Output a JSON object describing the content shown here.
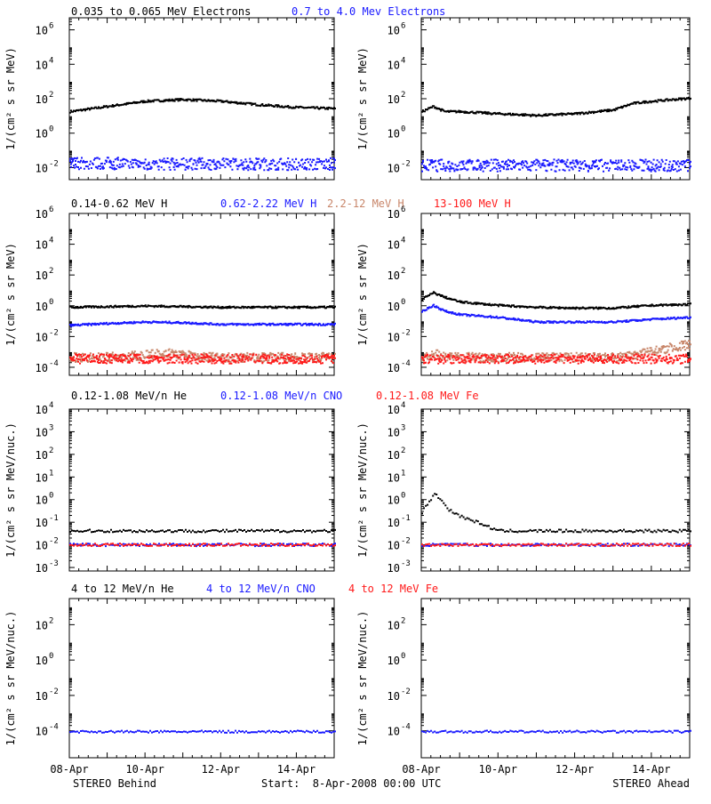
{
  "colors": {
    "black": "#000000",
    "blue": "#1a1aff",
    "tan": "#c8866a",
    "red": "#ff1a1a"
  },
  "chart_data": [
    {
      "type": "scatter",
      "row": 1,
      "log_y": true,
      "ylim": [
        0.002,
        5000000
      ],
      "xlim": [
        0,
        7
      ],
      "ylabel": "1/(cm² s sr MeV)",
      "yticks": [
        {
          "v": 0.01,
          "b": "10",
          "e": "-2"
        },
        {
          "v": 1,
          "b": "10",
          "e": "0"
        },
        {
          "v": 100,
          "b": "10",
          "e": "2"
        },
        {
          "v": 10000,
          "b": "10",
          "e": "4"
        },
        {
          "v": 1000000,
          "b": "10",
          "e": "6"
        }
      ],
      "legend": [
        {
          "name": "0.035 to 0.065 MeV Electrons",
          "color": "black"
        },
        {
          "name": "0.7 to 4.0 Mev Electrons",
          "color": "blue"
        }
      ],
      "panels": [
        {
          "side": "Behind",
          "series": [
            {
              "name": "0.035 to 0.065 MeV Electrons",
              "color": "black",
              "x": [
                0,
                1,
                2,
                3,
                4,
                5,
                6,
                7
              ],
              "y": [
                20,
                40,
                80,
                100,
                80,
                50,
                35,
                30
              ]
            },
            {
              "name": "0.7 to 4.0 Mev Electrons",
              "color": "blue",
              "x": [
                0,
                1,
                2,
                3,
                4,
                5,
                6,
                7
              ],
              "y": [
                0.02,
                0.02,
                0.018,
                0.018,
                0.018,
                0.018,
                0.018,
                0.018
              ]
            }
          ]
        },
        {
          "side": "Ahead",
          "series": [
            {
              "name": "0.035 to 0.065 MeV Electrons",
              "color": "black",
              "x": [
                0,
                0.3,
                0.6,
                1,
                2,
                3,
                4,
                5,
                5.5,
                6,
                7
              ],
              "y": [
                20,
                40,
                20,
                20,
                15,
                12,
                15,
                25,
                60,
                80,
                120
              ]
            },
            {
              "name": "0.7 to 4.0 Mev Electrons",
              "color": "blue",
              "x": [
                0,
                1,
                2,
                3,
                4,
                5,
                6,
                7
              ],
              "y": [
                0.015,
                0.015,
                0.015,
                0.015,
                0.015,
                0.015,
                0.015,
                0.015
              ]
            }
          ]
        }
      ]
    },
    {
      "type": "scatter",
      "row": 2,
      "log_y": true,
      "ylim": [
        3e-05,
        1000000
      ],
      "xlim": [
        0,
        7
      ],
      "ylabel": "1/(cm² s sr MeV)",
      "yticks": [
        {
          "v": 0.0001,
          "b": "10",
          "e": "-4"
        },
        {
          "v": 0.01,
          "b": "10",
          "e": "-2"
        },
        {
          "v": 1,
          "b": "10",
          "e": "0"
        },
        {
          "v": 100,
          "b": "10",
          "e": "2"
        },
        {
          "v": 10000,
          "b": "10",
          "e": "4"
        },
        {
          "v": 1000000,
          "b": "10",
          "e": "6"
        }
      ],
      "legend": [
        {
          "name": "0.14-0.62 MeV H",
          "color": "black"
        },
        {
          "name": "0.62-2.22 MeV H",
          "color": "blue"
        },
        {
          "name": "2.2-12 MeV H",
          "color": "tan"
        },
        {
          "name": "13-100 MeV H",
          "color": "red"
        }
      ],
      "panels": [
        {
          "side": "Behind",
          "series": [
            {
              "name": "0.14-0.62 MeV H",
              "color": "black",
              "x": [
                0,
                1,
                2,
                3,
                4,
                5,
                6,
                7
              ],
              "y": [
                0.9,
                1,
                1.1,
                1,
                0.9,
                0.9,
                0.9,
                0.9
              ]
            },
            {
              "name": "0.62-2.22 MeV H",
              "color": "blue",
              "x": [
                0,
                1,
                2,
                3,
                4,
                5,
                6,
                7
              ],
              "y": [
                0.06,
                0.08,
                0.1,
                0.09,
                0.07,
                0.07,
                0.07,
                0.07
              ]
            },
            {
              "name": "2.2-12 MeV H",
              "color": "tan",
              "x": [
                0,
                1,
                2,
                2.5,
                3,
                4,
                5,
                6,
                7
              ],
              "y": [
                0.0005,
                0.0005,
                0.0007,
                0.001,
                0.0007,
                0.0005,
                0.0005,
                0.0005,
                0.0005
              ]
            },
            {
              "name": "13-100 MeV H",
              "color": "red",
              "x": [
                0,
                1,
                2,
                3,
                4,
                5,
                6,
                7
              ],
              "y": [
                0.0004,
                0.0004,
                0.0004,
                0.0004,
                0.0004,
                0.0004,
                0.0004,
                0.0004
              ]
            }
          ]
        },
        {
          "side": "Ahead",
          "series": [
            {
              "name": "0.14-0.62 MeV H",
              "color": "black",
              "x": [
                0,
                0.3,
                0.6,
                1,
                2,
                3,
                4,
                5,
                6,
                7
              ],
              "y": [
                3,
                8,
                4,
                2,
                1.2,
                0.9,
                0.8,
                0.8,
                1.2,
                1.4
              ]
            },
            {
              "name": "0.62-2.22 MeV H",
              "color": "blue",
              "x": [
                0,
                0.3,
                0.6,
                1,
                2,
                3,
                4,
                5,
                6,
                7
              ],
              "y": [
                0.5,
                1.2,
                0.5,
                0.3,
                0.2,
                0.1,
                0.1,
                0.1,
                0.15,
                0.2
              ]
            },
            {
              "name": "2.2-12 MeV H",
              "color": "tan",
              "x": [
                0,
                0.3,
                1,
                2,
                3,
                4,
                5,
                5.5,
                6,
                6.5,
                7
              ],
              "y": [
                0.0005,
                0.0008,
                0.0005,
                0.0005,
                0.0005,
                0.0005,
                0.0005,
                0.0006,
                0.0012,
                0.0022,
                0.0035
              ]
            },
            {
              "name": "13-100 MeV H",
              "color": "red",
              "x": [
                0,
                1,
                2,
                3,
                4,
                5,
                6,
                7
              ],
              "y": [
                0.0004,
                0.0004,
                0.0004,
                0.0004,
                0.0004,
                0.0004,
                0.0004,
                0.0004
              ]
            }
          ]
        }
      ]
    },
    {
      "type": "scatter",
      "row": 3,
      "log_y": true,
      "ylim": [
        0.0007,
        10000
      ],
      "xlim": [
        0,
        7
      ],
      "ylabel": "1/(cm² s sr MeV/nuc.)",
      "yticks": [
        {
          "v": 0.001,
          "b": "10",
          "e": "-3"
        },
        {
          "v": 0.01,
          "b": "10",
          "e": "-2"
        },
        {
          "v": 0.1,
          "b": "10",
          "e": "-1"
        },
        {
          "v": 1,
          "b": "10",
          "e": "0"
        },
        {
          "v": 10,
          "b": "10",
          "e": "1"
        },
        {
          "v": 100,
          "b": "10",
          "e": "2"
        },
        {
          "v": 1000,
          "b": "10",
          "e": "3"
        },
        {
          "v": 10000,
          "b": "10",
          "e": "4"
        }
      ],
      "legend": [
        {
          "name": "0.12-1.08 MeV/n He",
          "color": "black"
        },
        {
          "name": "0.12-1.08 MeV/n CNO",
          "color": "blue"
        },
        {
          "name": "0.12-1.08 MeV Fe",
          "color": "red"
        }
      ],
      "panels": [
        {
          "side": "Behind",
          "series": [
            {
              "name": "0.12-1.08 MeV/n He",
              "color": "black",
              "x": [
                0,
                7
              ],
              "y": [
                0.045,
                0.045
              ]
            },
            {
              "name": "0.12-1.08 MeV/n CNO",
              "color": "blue",
              "x": [
                0,
                7
              ],
              "y": [
                0.011,
                0.011
              ]
            },
            {
              "name": "0.12-1.08 MeV Fe",
              "color": "red",
              "x": [
                0,
                7
              ],
              "y": [
                0.011,
                0.011
              ]
            }
          ]
        },
        {
          "side": "Ahead",
          "series": [
            {
              "name": "0.12-1.08 MeV/n He",
              "color": "black",
              "x": [
                0,
                0.2,
                0.35,
                0.5,
                0.7,
                1,
                1.5,
                2,
                7
              ],
              "y": [
                0.3,
                1,
                2,
                1,
                0.4,
                0.2,
                0.1,
                0.045,
                0.045
              ]
            },
            {
              "name": "0.12-1.08 MeV/n CNO",
              "color": "blue",
              "x": [
                0,
                7
              ],
              "y": [
                0.011,
                0.011
              ]
            },
            {
              "name": "0.12-1.08 MeV Fe",
              "color": "red",
              "x": [
                0,
                7
              ],
              "y": [
                0.011,
                0.011
              ]
            }
          ]
        }
      ]
    },
    {
      "type": "scatter",
      "row": 4,
      "log_y": true,
      "ylim": [
        3e-06,
        3000
      ],
      "xlim": [
        0,
        7
      ],
      "ylabel": "1/(cm² s sr MeV/nuc.)",
      "yticks": [
        {
          "v": 0.0001,
          "b": "10",
          "e": "-4"
        },
        {
          "v": 0.01,
          "b": "10",
          "e": "-2"
        },
        {
          "v": 1,
          "b": "10",
          "e": "0"
        },
        {
          "v": 100,
          "b": "10",
          "e": "2"
        }
      ],
      "legend": [
        {
          "name": "4 to 12 MeV/n He",
          "color": "black"
        },
        {
          "name": "4 to 12 MeV/n CNO",
          "color": "blue"
        },
        {
          "name": "4 to 12 MeV Fe",
          "color": "red"
        }
      ],
      "panels": [
        {
          "side": "Behind",
          "series": [
            {
              "name": "4 to 12 MeV/n CNO",
              "color": "blue",
              "x": [
                0,
                7
              ],
              "y": [
                0.0001,
                0.0001
              ]
            }
          ]
        },
        {
          "side": "Ahead",
          "series": [
            {
              "name": "4 to 12 MeV/n CNO",
              "color": "blue",
              "x": [
                0,
                7
              ],
              "y": [
                0.0001,
                0.0001
              ]
            }
          ]
        }
      ]
    }
  ],
  "x_axis": {
    "tick_labels": [
      "08-Apr",
      "10-Apr",
      "12-Apr",
      "14-Apr"
    ],
    "tick_values": [
      0,
      2,
      4,
      6
    ]
  },
  "footer": {
    "left": "STEREO Behind",
    "center": "Start:  8-Apr-2008 00:00 UTC",
    "right": "STEREO Ahead"
  }
}
